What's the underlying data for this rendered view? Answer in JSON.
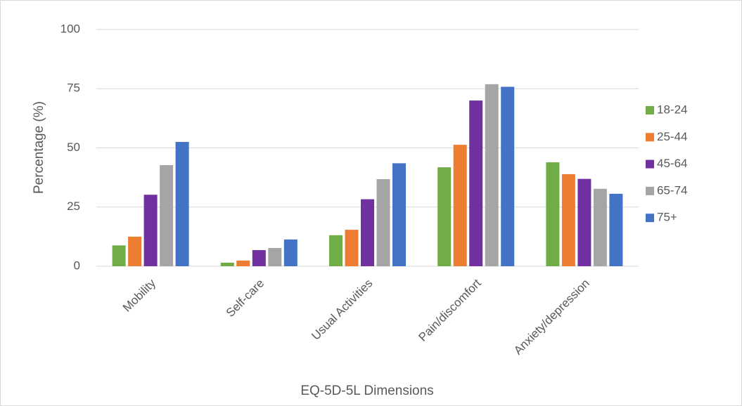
{
  "chart_data": {
    "type": "bar",
    "x_label": "EQ-5D-5L Dimensions",
    "y_label": "Percentage (%)",
    "categories": [
      "Mobility",
      "Self-care",
      "Usual Activities",
      "Pain/discomfort",
      "Anxiety/depression"
    ],
    "series": [
      {
        "name": "18-24",
        "color": "#70ad47",
        "values": [
          8.8,
          1.5,
          13.1,
          41.8,
          43.9
        ]
      },
      {
        "name": "25-44",
        "color": "#ed7d31",
        "values": [
          12.5,
          2.4,
          15.4,
          51.3,
          38.9
        ]
      },
      {
        "name": "45-64",
        "color": "#7030a0",
        "values": [
          30.2,
          6.8,
          28.3,
          70.0,
          36.9
        ]
      },
      {
        "name": "65-74",
        "color": "#a5a5a5",
        "values": [
          42.7,
          7.7,
          36.8,
          76.9,
          32.7
        ]
      },
      {
        "name": "75+",
        "color": "#4472c4",
        "values": [
          52.5,
          11.3,
          43.5,
          75.8,
          30.6
        ]
      }
    ],
    "ylim": [
      0,
      100
    ],
    "yticks": [
      0,
      25,
      50,
      75,
      100
    ],
    "grid": true,
    "legend": "right"
  }
}
